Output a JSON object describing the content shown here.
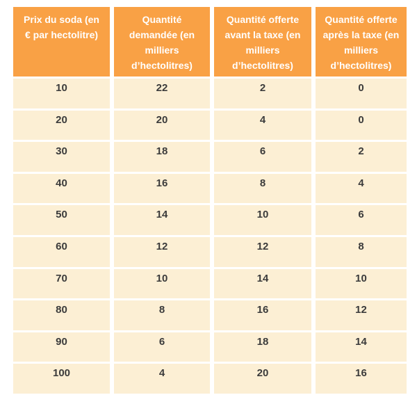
{
  "chart_data": {
    "type": "table",
    "title": "",
    "columns": [
      "Prix du soda (en\n€ par hectolitre)",
      "Quantité\ndemandée (en\nmilliers\nd’hectolitres)",
      "Quantité offerte\navant la taxe (en\nmilliers\nd’hectolitres)",
      "Quantité offerte\naprès la taxe (en\nmilliers\nd’hectolitres)"
    ],
    "rows": [
      [
        10,
        22,
        2,
        0
      ],
      [
        20,
        20,
        4,
        0
      ],
      [
        30,
        18,
        6,
        2
      ],
      [
        40,
        16,
        8,
        4
      ],
      [
        50,
        14,
        10,
        6
      ],
      [
        60,
        12,
        12,
        8
      ],
      [
        70,
        10,
        14,
        10
      ],
      [
        80,
        8,
        16,
        12
      ],
      [
        90,
        6,
        18,
        14
      ],
      [
        100,
        4,
        20,
        16
      ]
    ]
  },
  "colors": {
    "page_bg": "#FFFFFF",
    "header_bg": "#F9A145",
    "header_text": "#FFFFFF",
    "cell_bg": "#FCEFD4",
    "cell_text": "#3B3B3B",
    "grid_gap": "#FFFFFF"
  }
}
